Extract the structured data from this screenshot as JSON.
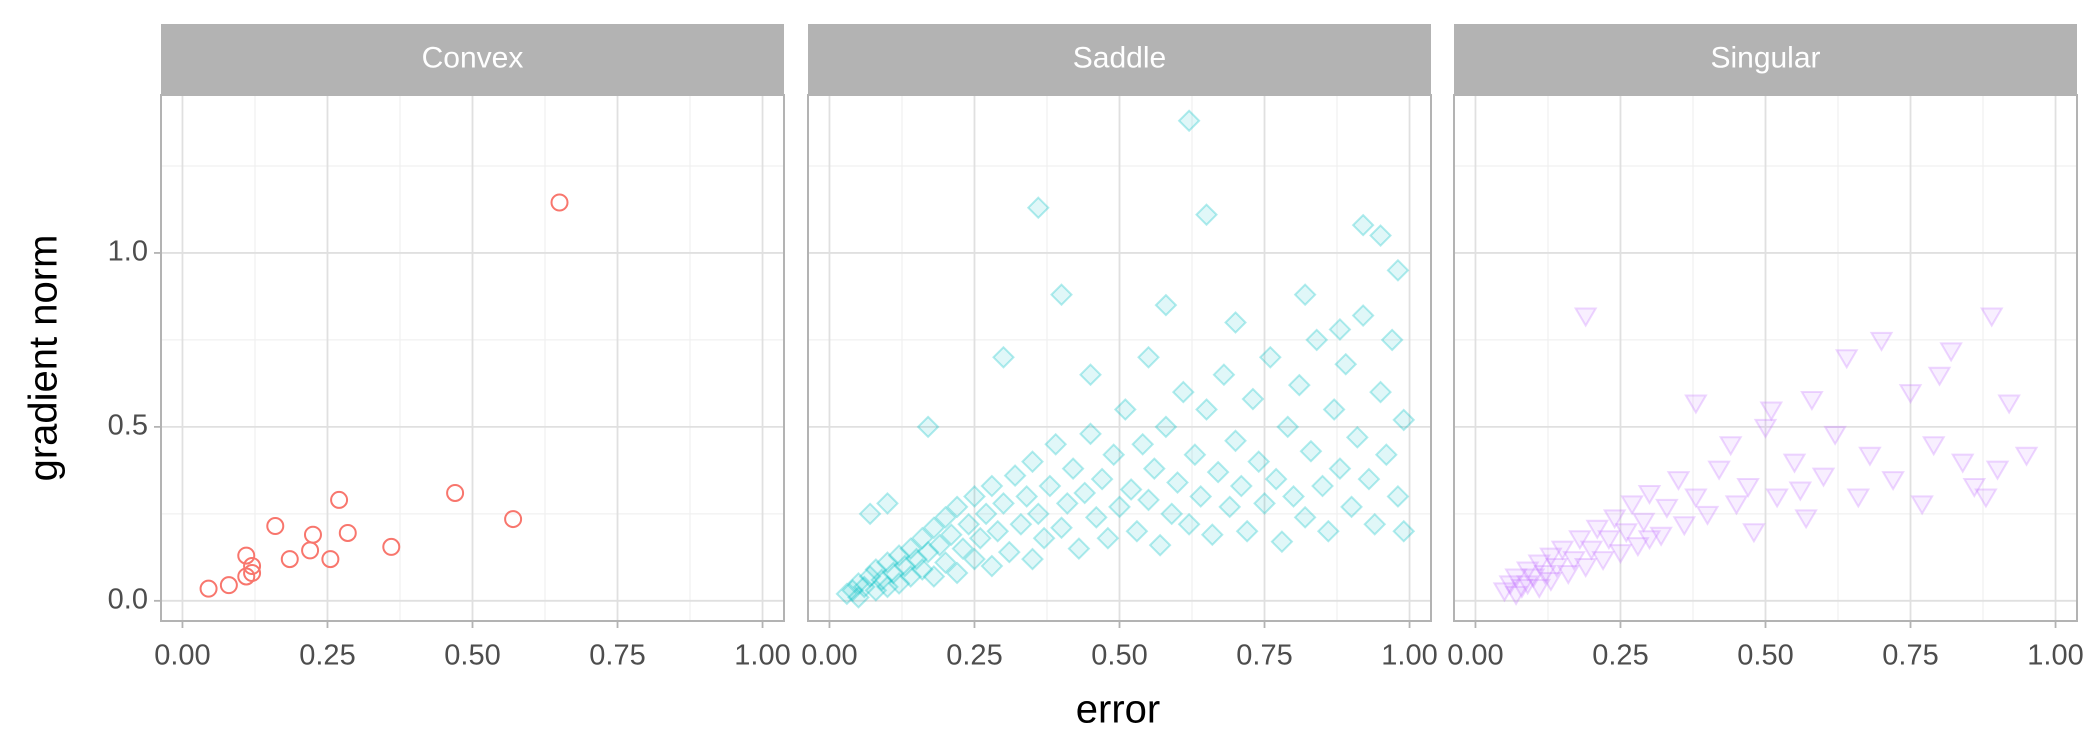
{
  "chart_data": {
    "type": "scatter",
    "xlabel": "error",
    "ylabel": "gradient norm",
    "xlim": [
      -0.037,
      1.037
    ],
    "ylim": [
      -0.058,
      1.454
    ],
    "xticks": [
      {
        "value": 0,
        "label": "0.00"
      },
      {
        "value": 0.25,
        "label": "0.25"
      },
      {
        "value": 0.5,
        "label": "0.50"
      },
      {
        "value": 0.75,
        "label": "0.75"
      },
      {
        "value": 1,
        "label": "1.00"
      }
    ],
    "yticks": [
      {
        "value": 0,
        "label": "0.0"
      },
      {
        "value": 0.5,
        "label": "0.5"
      },
      {
        "value": 1,
        "label": "1.0"
      }
    ],
    "grid": true,
    "panels": [
      {
        "title": "Convex",
        "color": "#F8766D",
        "marker": "circle",
        "alpha": 1,
        "x": [
          0.045,
          0.08,
          0.11,
          0.11,
          0.12,
          0.12,
          0.16,
          0.185,
          0.22,
          0.225,
          0.255,
          0.27,
          0.285,
          0.36,
          0.47,
          0.57,
          0.65
        ],
        "y": [
          0.035,
          0.045,
          0.13,
          0.07,
          0.1,
          0.08,
          0.215,
          0.12,
          0.145,
          0.19,
          0.12,
          0.29,
          0.195,
          0.155,
          0.31,
          0.235,
          1.145
        ]
      },
      {
        "title": "Saddle",
        "color": "#00BFC4",
        "marker": "diamond",
        "alpha": 0.3,
        "x": [
          0.03,
          0.04,
          0.05,
          0.05,
          0.06,
          0.07,
          0.08,
          0.08,
          0.09,
          0.1,
          0.1,
          0.11,
          0.12,
          0.12,
          0.13,
          0.14,
          0.14,
          0.15,
          0.16,
          0.16,
          0.17,
          0.18,
          0.18,
          0.19,
          0.2,
          0.2,
          0.21,
          0.22,
          0.22,
          0.23,
          0.24,
          0.25,
          0.25,
          0.26,
          0.27,
          0.28,
          0.28,
          0.29,
          0.3,
          0.31,
          0.32,
          0.33,
          0.34,
          0.35,
          0.35,
          0.36,
          0.37,
          0.38,
          0.39,
          0.4,
          0.41,
          0.42,
          0.43,
          0.44,
          0.45,
          0.46,
          0.47,
          0.48,
          0.49,
          0.5,
          0.51,
          0.52,
          0.53,
          0.54,
          0.55,
          0.56,
          0.57,
          0.58,
          0.59,
          0.6,
          0.61,
          0.62,
          0.63,
          0.64,
          0.65,
          0.66,
          0.67,
          0.68,
          0.69,
          0.7,
          0.71,
          0.72,
          0.73,
          0.74,
          0.75,
          0.76,
          0.77,
          0.78,
          0.79,
          0.8,
          0.81,
          0.82,
          0.83,
          0.84,
          0.85,
          0.86,
          0.87,
          0.88,
          0.89,
          0.9,
          0.91,
          0.92,
          0.93,
          0.94,
          0.95,
          0.96,
          0.97,
          0.98,
          0.99,
          0.99,
          0.98,
          0.95,
          0.92,
          0.62,
          0.36,
          0.65,
          0.4,
          0.58,
          0.82,
          0.3,
          0.17,
          0.1,
          0.07,
          0.45,
          0.55,
          0.7,
          0.88
        ],
        "y": [
          0.02,
          0.03,
          0.01,
          0.05,
          0.04,
          0.07,
          0.03,
          0.09,
          0.06,
          0.11,
          0.04,
          0.08,
          0.13,
          0.05,
          0.1,
          0.15,
          0.07,
          0.12,
          0.18,
          0.09,
          0.14,
          0.21,
          0.07,
          0.16,
          0.24,
          0.11,
          0.19,
          0.27,
          0.08,
          0.15,
          0.22,
          0.3,
          0.12,
          0.18,
          0.25,
          0.33,
          0.1,
          0.2,
          0.28,
          0.14,
          0.36,
          0.22,
          0.3,
          0.12,
          0.4,
          0.25,
          0.18,
          0.33,
          0.45,
          0.21,
          0.28,
          0.38,
          0.15,
          0.31,
          0.48,
          0.24,
          0.35,
          0.18,
          0.42,
          0.27,
          0.55,
          0.32,
          0.2,
          0.45,
          0.29,
          0.38,
          0.16,
          0.5,
          0.25,
          0.34,
          0.6,
          0.22,
          0.42,
          0.3,
          0.55,
          0.19,
          0.37,
          0.65,
          0.27,
          0.46,
          0.33,
          0.2,
          0.58,
          0.4,
          0.28,
          0.7,
          0.35,
          0.17,
          0.5,
          0.3,
          0.62,
          0.24,
          0.43,
          0.75,
          0.33,
          0.2,
          0.55,
          0.38,
          0.68,
          0.27,
          0.47,
          0.82,
          0.35,
          0.22,
          0.6,
          0.42,
          0.75,
          0.3,
          0.52,
          0.2,
          0.95,
          1.05,
          1.08,
          1.38,
          1.13,
          1.11,
          0.88,
          0.85,
          0.88,
          0.7,
          0.5,
          0.28,
          0.25,
          0.65,
          0.7,
          0.8,
          0.78
        ]
      },
      {
        "title": "Singular",
        "color": "#C77CFF",
        "marker": "triangle",
        "alpha": 0.3,
        "x": [
          0.05,
          0.06,
          0.07,
          0.07,
          0.08,
          0.09,
          0.09,
          0.1,
          0.11,
          0.11,
          0.12,
          0.13,
          0.13,
          0.14,
          0.15,
          0.16,
          0.17,
          0.18,
          0.19,
          0.2,
          0.21,
          0.22,
          0.23,
          0.24,
          0.25,
          0.26,
          0.27,
          0.28,
          0.29,
          0.3,
          0.32,
          0.33,
          0.35,
          0.36,
          0.38,
          0.38,
          0.4,
          0.42,
          0.44,
          0.45,
          0.47,
          0.5,
          0.51,
          0.52,
          0.55,
          0.57,
          0.58,
          0.6,
          0.62,
          0.64,
          0.66,
          0.68,
          0.7,
          0.72,
          0.75,
          0.77,
          0.79,
          0.8,
          0.82,
          0.84,
          0.86,
          0.88,
          0.89,
          0.9,
          0.92,
          0.95,
          0.19,
          0.56,
          0.48,
          0.3
        ],
        "y": [
          0.03,
          0.05,
          0.02,
          0.07,
          0.04,
          0.09,
          0.05,
          0.07,
          0.11,
          0.04,
          0.08,
          0.13,
          0.06,
          0.1,
          0.15,
          0.08,
          0.12,
          0.18,
          0.1,
          0.15,
          0.21,
          0.12,
          0.18,
          0.24,
          0.14,
          0.2,
          0.28,
          0.16,
          0.23,
          0.31,
          0.19,
          0.27,
          0.35,
          0.22,
          0.3,
          0.57,
          0.25,
          0.38,
          0.45,
          0.28,
          0.33,
          0.5,
          0.55,
          0.3,
          0.4,
          0.24,
          0.58,
          0.36,
          0.48,
          0.7,
          0.3,
          0.42,
          0.75,
          0.35,
          0.6,
          0.28,
          0.45,
          0.65,
          0.72,
          0.4,
          0.33,
          0.3,
          0.82,
          0.38,
          0.57,
          0.42,
          0.82,
          0.32,
          0.2,
          0.18
        ]
      }
    ]
  }
}
